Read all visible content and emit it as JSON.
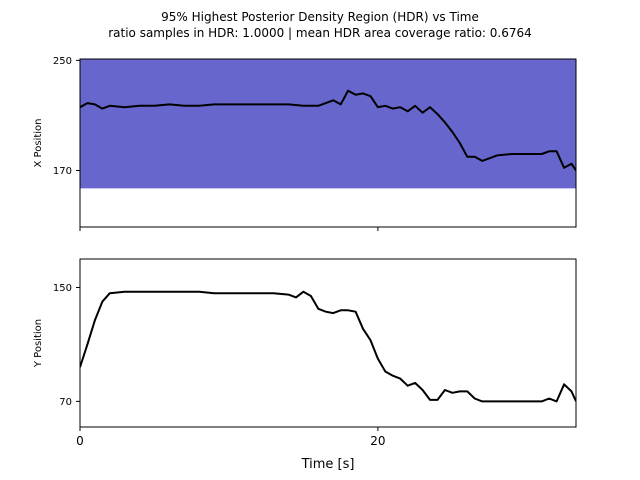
{
  "figure": {
    "title_line1": "95% Highest Posterior Density Region (HDR) vs Time",
    "title_line2": "ratio samples in HDR: 1.0000 | mean HDR area coverage ratio: 0.6764"
  },
  "chart_data": [
    {
      "type": "line",
      "title": "",
      "xlabel": "",
      "ylabel": "X Position",
      "xlim": [
        0,
        33.3
      ],
      "ylim": [
        129,
        251
      ],
      "xticks": [
        0,
        20
      ],
      "xtick_labels": [
        "",
        ""
      ],
      "yticks": [
        170,
        250
      ],
      "ytick_labels": [
        "170",
        "250"
      ],
      "grid": false,
      "hdr_band": {
        "color": "#6666cc",
        "lower": [
          [
            0,
            157
          ],
          [
            33.3,
            157
          ]
        ],
        "upper": [
          [
            0,
            260
          ],
          [
            33.3,
            260
          ]
        ]
      },
      "series": [
        {
          "color": "#000000",
          "x": [
            0,
            0.5,
            1,
            1.5,
            2,
            3,
            4,
            5,
            6,
            7,
            8,
            9,
            10,
            11,
            12,
            13,
            14,
            15,
            16,
            16.5,
            17,
            17.5,
            18,
            18.5,
            19,
            19.5,
            20,
            20.5,
            21,
            21.5,
            22,
            22.5,
            23,
            23.5,
            24,
            24.5,
            25,
            25.5,
            26,
            26.5,
            27,
            28,
            29,
            30,
            31,
            31.5,
            32,
            32.5,
            33,
            33.3
          ],
          "y": [
            216,
            219,
            218,
            215,
            217,
            216,
            217,
            217,
            218,
            217,
            217,
            218,
            218,
            218,
            218,
            218,
            218,
            217,
            217,
            219,
            221,
            218,
            228,
            225,
            226,
            224,
            216,
            217,
            215,
            216,
            213,
            217,
            212,
            216,
            211,
            205,
            198,
            190,
            180,
            180,
            177,
            181,
            182,
            182,
            182,
            184,
            184,
            172,
            175,
            170
          ]
        }
      ]
    },
    {
      "type": "line",
      "title": "",
      "xlabel": "Time [s]",
      "ylabel": "Y Position",
      "xlim": [
        0,
        33.3
      ],
      "ylim": [
        52,
        170
      ],
      "xticks": [
        0,
        20
      ],
      "xtick_labels": [
        "0",
        "20"
      ],
      "yticks": [
        70,
        150
      ],
      "ytick_labels": [
        "70",
        "150"
      ],
      "grid": false,
      "series": [
        {
          "color": "#000000",
          "x": [
            0,
            0.5,
            1,
            1.5,
            2,
            3,
            4,
            5,
            6,
            7,
            8,
            9,
            10,
            11,
            12,
            13,
            14,
            14.5,
            15,
            15.5,
            16,
            16.5,
            17,
            17.5,
            18,
            18.5,
            19,
            19.5,
            20,
            20.5,
            21,
            21.5,
            22,
            22.5,
            23,
            23.5,
            24,
            24.5,
            25,
            25.5,
            26,
            26.5,
            27,
            28,
            29,
            30,
            31,
            31.5,
            32,
            32.5,
            33,
            33.3
          ],
          "y": [
            94,
            110,
            127,
            140,
            146,
            147,
            147,
            147,
            147,
            147,
            147,
            146,
            146,
            146,
            146,
            146,
            145,
            143,
            147,
            144,
            135,
            133,
            132,
            134,
            134,
            133,
            121,
            113,
            100,
            91,
            88,
            86,
            81,
            83,
            78,
            71,
            71,
            78,
            76,
            77,
            77,
            72,
            70,
            70,
            70,
            70,
            70,
            72,
            70,
            82,
            77,
            70
          ]
        }
      ]
    }
  ]
}
